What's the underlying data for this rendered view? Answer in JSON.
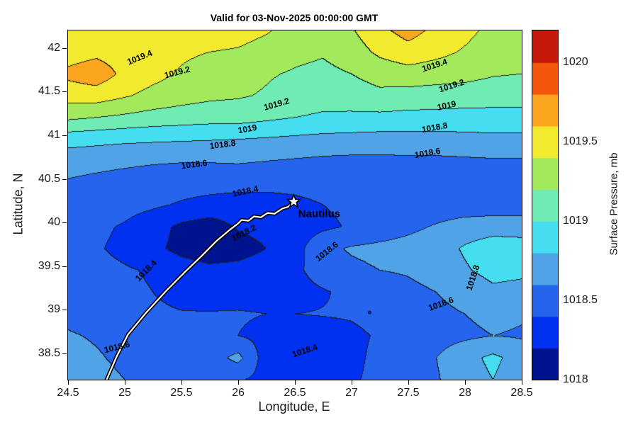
{
  "figure": {
    "background": "#ffffff"
  },
  "chart_data": {
    "type": "filled_contour_map",
    "title": "Valid for 03-Nov-2025 00:00:00 GMT",
    "xlabel": "Longitude, E",
    "ylabel": "Latitude, N",
    "xlim": [
      24.5,
      28.5
    ],
    "ylim": [
      38.2,
      42.2
    ],
    "grid_on": false,
    "xticks": {
      "values": [
        24.5,
        25,
        25.5,
        26,
        26.5,
        27,
        27.5,
        28,
        28.5
      ],
      "labels": [
        "24.5",
        "25",
        "25.5",
        "26",
        "26.5",
        "27",
        "27.5",
        "28",
        "28.5"
      ]
    },
    "yticks": {
      "values": [
        38.5,
        39,
        39.5,
        40,
        40.5,
        41,
        41.5,
        42
      ],
      "labels": [
        "38.5",
        "39",
        "39.5",
        "40",
        "40.5",
        "41",
        "41.5",
        "42"
      ]
    },
    "colorbar": {
      "label": "Surface Pressure, mb",
      "min": 1018,
      "max": 1020.2,
      "step": 0.2,
      "colors": [
        "#00138F",
        "#0031F0",
        "#2565EE",
        "#4FA3E6",
        "#45DEF0",
        "#6EECB4",
        "#A2E95B",
        "#F2EA2E",
        "#FCA51F",
        "#F4570C",
        "#C3180A"
      ],
      "ticks": {
        "values": [
          1018,
          1018.5,
          1019,
          1019.5,
          1020
        ],
        "labels": [
          "1018",
          "1018.5",
          "1019",
          "1019.5",
          "1020"
        ]
      }
    },
    "contour_levels": [
      1018.2,
      1018.4,
      1018.6,
      1018.8,
      1019,
      1019.2,
      1019.4
    ],
    "grid": {
      "lons": [
        24.5,
        24.75,
        25.0,
        25.25,
        25.5,
        25.75,
        26.0,
        26.25,
        26.5,
        26.75,
        27.0,
        27.25,
        27.5,
        27.75,
        28.0,
        28.25,
        28.5
      ],
      "lats": [
        42.2,
        41.95,
        41.7,
        41.45,
        41.2,
        40.95,
        40.7,
        40.45,
        40.2,
        39.95,
        39.7,
        39.45,
        39.2,
        38.95,
        38.7,
        38.45,
        38.2
      ],
      "values_mb": [
        [
          1019.45,
          1019.5,
          1019.5,
          1019.52,
          1019.52,
          1019.5,
          1019.48,
          1019.42,
          1019.32,
          1019.3,
          1019.38,
          1019.55,
          1019.68,
          1019.55,
          1019.45,
          1019.35,
          1019.3
        ],
        [
          1019.5,
          1019.55,
          1019.5,
          1019.46,
          1019.43,
          1019.4,
          1019.38,
          1019.32,
          1019.25,
          1019.22,
          1019.3,
          1019.44,
          1019.52,
          1019.45,
          1019.38,
          1019.3,
          1019.25
        ],
        [
          1019.65,
          1019.72,
          1019.55,
          1019.46,
          1019.38,
          1019.32,
          1019.28,
          1019.22,
          1019.18,
          1019.15,
          1019.2,
          1019.28,
          1019.32,
          1019.3,
          1019.28,
          1019.22,
          1019.2
        ],
        [
          1019.48,
          1019.5,
          1019.42,
          1019.34,
          1019.28,
          1019.24,
          1019.22,
          1019.18,
          1019.12,
          1019.08,
          1019.1,
          1019.15,
          1019.12,
          1019.1,
          1019.08,
          1019.06,
          1019.06
        ],
        [
          1019.24,
          1019.2,
          1019.16,
          1019.12,
          1019.1,
          1019.08,
          1019.08,
          1019.04,
          1019.0,
          1018.97,
          1018.96,
          1018.95,
          1018.94,
          1018.94,
          1018.94,
          1018.95,
          1018.95
        ],
        [
          1018.88,
          1018.86,
          1018.84,
          1018.83,
          1018.82,
          1018.81,
          1018.8,
          1018.78,
          1018.76,
          1018.74,
          1018.73,
          1018.72,
          1018.72,
          1018.72,
          1018.73,
          1018.74,
          1018.74
        ],
        [
          1018.68,
          1018.66,
          1018.64,
          1018.62,
          1018.61,
          1018.61,
          1018.62,
          1018.6,
          1018.58,
          1018.56,
          1018.55,
          1018.55,
          1018.56,
          1018.56,
          1018.57,
          1018.58,
          1018.58
        ],
        [
          1018.58,
          1018.55,
          1018.52,
          1018.5,
          1018.48,
          1018.47,
          1018.46,
          1018.45,
          1018.45,
          1018.46,
          1018.46,
          1018.45,
          1018.45,
          1018.45,
          1018.45,
          1018.46,
          1018.46
        ],
        [
          1018.54,
          1018.5,
          1018.47,
          1018.43,
          1018.38,
          1018.34,
          1018.32,
          1018.33,
          1018.36,
          1018.4,
          1018.44,
          1018.46,
          1018.47,
          1018.47,
          1018.47,
          1018.48,
          1018.48
        ],
        [
          1018.48,
          1018.44,
          1018.38,
          1018.28,
          1018.16,
          1018.1,
          1018.22,
          1018.26,
          1018.3,
          1018.36,
          1018.42,
          1018.48,
          1018.55,
          1018.62,
          1018.7,
          1018.72,
          1018.72
        ],
        [
          1018.46,
          1018.42,
          1018.35,
          1018.25,
          1018.14,
          1018.08,
          1018.12,
          1018.2,
          1018.32,
          1018.55,
          1018.62,
          1018.65,
          1018.68,
          1018.72,
          1018.82,
          1018.9,
          1018.88
        ],
        [
          1018.5,
          1018.46,
          1018.42,
          1018.38,
          1018.3,
          1018.25,
          1018.26,
          1018.3,
          1018.35,
          1018.5,
          1018.56,
          1018.6,
          1018.62,
          1018.68,
          1018.78,
          1018.86,
          1018.84
        ],
        [
          1018.52,
          1018.48,
          1018.44,
          1018.4,
          1018.35,
          1018.32,
          1018.3,
          1018.3,
          1018.32,
          1018.38,
          1018.45,
          1018.5,
          1018.55,
          1018.6,
          1018.68,
          1018.76,
          1018.74
        ],
        [
          1018.55,
          1018.5,
          1018.46,
          1018.43,
          1018.41,
          1018.41,
          1018.42,
          1018.4,
          1018.4,
          1018.41,
          1018.42,
          1018.46,
          1018.5,
          1018.55,
          1018.6,
          1018.65,
          1018.62
        ],
        [
          1018.62,
          1018.58,
          1018.54,
          1018.48,
          1018.44,
          1018.42,
          1018.4,
          1018.34,
          1018.3,
          1018.32,
          1018.36,
          1018.42,
          1018.46,
          1018.52,
          1018.56,
          1018.6,
          1018.58
        ],
        [
          1018.68,
          1018.62,
          1018.56,
          1018.52,
          1018.48,
          1018.5,
          1018.66,
          1018.3,
          1018.26,
          1018.3,
          1018.36,
          1018.44,
          1018.52,
          1018.6,
          1018.74,
          1018.84,
          1018.72
        ],
        [
          1018.72,
          1018.66,
          1018.6,
          1018.55,
          1018.5,
          1018.46,
          1018.42,
          1018.34,
          1018.3,
          1018.32,
          1018.38,
          1018.44,
          1018.5,
          1018.58,
          1018.72,
          1018.8,
          1018.68
        ]
      ]
    },
    "contour_labels": [
      {
        "text": "1019.4",
        "lon": 25.13,
        "lat": 41.89,
        "rot": -22
      },
      {
        "text": "1019.2",
        "lon": 25.46,
        "lat": 41.72,
        "rot": -15
      },
      {
        "text": "1019.2",
        "lon": 26.34,
        "lat": 41.36,
        "rot": -16
      },
      {
        "text": "1019",
        "lon": 26.08,
        "lat": 41.07,
        "rot": -10
      },
      {
        "text": "1018.8",
        "lon": 25.86,
        "lat": 40.89,
        "rot": -7
      },
      {
        "text": "1018.6",
        "lon": 25.61,
        "lat": 40.67,
        "rot": -7
      },
      {
        "text": "1019.4",
        "lon": 27.73,
        "lat": 41.8,
        "rot": -18
      },
      {
        "text": "1019.2",
        "lon": 27.88,
        "lat": 41.57,
        "rot": -18
      },
      {
        "text": "1019",
        "lon": 27.84,
        "lat": 41.34,
        "rot": -12
      },
      {
        "text": "1018.8",
        "lon": 27.73,
        "lat": 41.09,
        "rot": -10
      },
      {
        "text": "1018.6",
        "lon": 27.67,
        "lat": 40.8,
        "rot": -10
      },
      {
        "text": "1018.4",
        "lon": 26.06,
        "lat": 40.36,
        "rot": -12
      },
      {
        "text": "1018.2",
        "lon": 26.05,
        "lat": 39.88,
        "rot": -28
      },
      {
        "text": "1018.4",
        "lon": 25.19,
        "lat": 39.45,
        "rot": -45
      },
      {
        "text": "1018.6",
        "lon": 26.78,
        "lat": 39.67,
        "rot": -38
      },
      {
        "text": "1018.8",
        "lon": 28.07,
        "lat": 39.37,
        "rot": -72
      },
      {
        "text": "1018.6",
        "lon": 27.79,
        "lat": 39.07,
        "rot": -20
      },
      {
        "text": "1018.4",
        "lon": 26.59,
        "lat": 38.53,
        "rot": -18
      },
      {
        "text": "1018.6",
        "lon": 24.93,
        "lat": 38.57,
        "rot": -14
      }
    ],
    "track": {
      "name": "Nautilus",
      "points": [
        [
          24.84,
          38.2
        ],
        [
          24.93,
          38.47
        ],
        [
          25.03,
          38.72
        ],
        [
          25.19,
          38.97
        ],
        [
          25.36,
          39.21
        ],
        [
          25.52,
          39.42
        ],
        [
          25.68,
          39.62
        ],
        [
          25.81,
          39.79
        ],
        [
          25.92,
          39.91
        ],
        [
          26.0,
          39.99
        ],
        [
          26.03,
          40.03
        ],
        [
          26.09,
          40.02
        ],
        [
          26.14,
          40.07
        ],
        [
          26.2,
          40.06
        ],
        [
          26.26,
          40.11
        ],
        [
          26.32,
          40.1
        ],
        [
          26.39,
          40.16
        ],
        [
          26.44,
          40.18
        ],
        [
          26.49,
          40.24
        ]
      ],
      "star": [
        26.49,
        40.24
      ],
      "label_pos": [
        26.53,
        40.1
      ]
    },
    "dots": [
      [
        27.16,
        38.97
      ]
    ]
  }
}
